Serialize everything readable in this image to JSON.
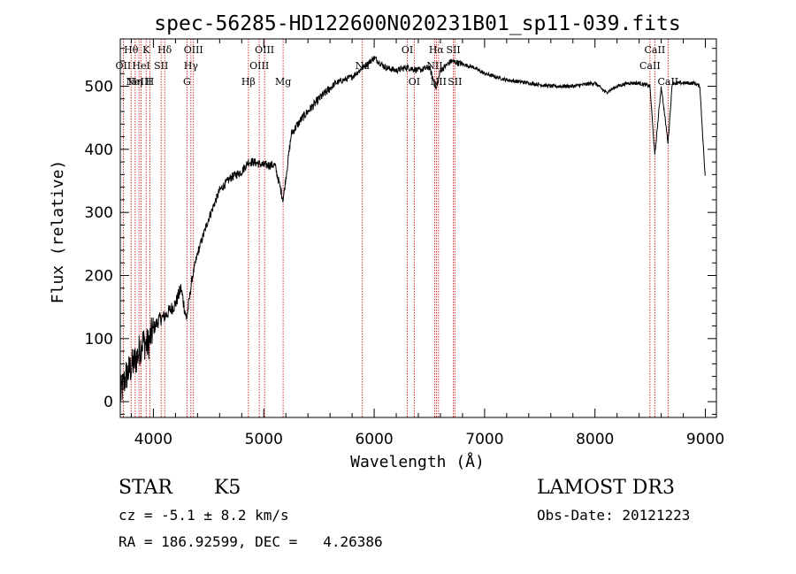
{
  "chart_data": {
    "type": "line",
    "title": "spec-56285-HD122600N020231B01_sp11-039.fits",
    "xlabel": "Wavelength (Å)",
    "ylabel": "Flux (relative)",
    "xlim": [
      3700,
      9100
    ],
    "ylim": [
      -25,
      575
    ],
    "x_ticks": [
      4000,
      5000,
      6000,
      7000,
      8000,
      9000
    ],
    "y_ticks": [
      0,
      100,
      200,
      300,
      400,
      500
    ],
    "grid": false,
    "line_color": "#000000",
    "marker_color": "#cc0000",
    "series": [
      {
        "x": [
          3700,
          3750,
          3800,
          3850,
          3900,
          3950,
          4000,
          4050,
          4100,
          4150,
          4200,
          4250,
          4300,
          4350,
          4400,
          4500,
          4600,
          4700,
          4800,
          4861,
          4900,
          5000,
          5100,
          5175,
          5250,
          5350,
          5500,
          5650,
          5800,
          5900,
          6000,
          6100,
          6200,
          6300,
          6400,
          6500,
          6563,
          6600,
          6700,
          6800,
          6900,
          7000,
          7100,
          7200,
          7400,
          7600,
          7800,
          8000,
          8100,
          8200,
          8300,
          8400,
          8498,
          8542,
          8600,
          8662,
          8700,
          8800,
          8900,
          8950,
          9000
        ],
        "y": [
          10,
          40,
          55,
          70,
          95,
          90,
          115,
          130,
          135,
          145,
          155,
          180,
          130,
          195,
          235,
          290,
          335,
          355,
          365,
          380,
          380,
          375,
          375,
          320,
          425,
          450,
          480,
          505,
          515,
          530,
          545,
          530,
          525,
          530,
          525,
          530,
          495,
          525,
          540,
          535,
          530,
          520,
          515,
          510,
          505,
          500,
          500,
          505,
          490,
          500,
          505,
          505,
          500,
          390,
          500,
          410,
          505,
          505,
          505,
          500,
          350
        ]
      }
    ],
    "line_markers": [
      {
        "x": 3727,
        "label": "OII",
        "row": 1
      },
      {
        "x": 3798,
        "label": "Hθ",
        "row": 0
      },
      {
        "x": 3835,
        "label": "Hη",
        "row": 2
      },
      {
        "x": 3869,
        "label": "NeIII",
        "row": 2
      },
      {
        "x": 3889,
        "label": "HeI",
        "row": 1
      },
      {
        "x": 3934,
        "label": "K",
        "row": 0
      },
      {
        "x": 3968,
        "label": "H",
        "row": 2
      },
      {
        "x": 4070,
        "label": "SII",
        "row": 1
      },
      {
        "x": 4102,
        "label": "Hδ",
        "row": 0
      },
      {
        "x": 4304,
        "label": "G",
        "row": 2
      },
      {
        "x": 4340,
        "label": "Hγ",
        "row": 1
      },
      {
        "x": 4363,
        "label": "OIII",
        "row": 0
      },
      {
        "x": 4861,
        "label": "Hβ",
        "row": 2
      },
      {
        "x": 4959,
        "label": "OIII",
        "row": 1
      },
      {
        "x": 5007,
        "label": "OIII",
        "row": 0
      },
      {
        "x": 5175,
        "label": "Mg",
        "row": 2
      },
      {
        "x": 5893,
        "label": "Na",
        "row": 1
      },
      {
        "x": 6300,
        "label": "OI",
        "row": 0
      },
      {
        "x": 6363,
        "label": "OI",
        "row": 2
      },
      {
        "x": 6548,
        "label": "NII",
        "row": 1
      },
      {
        "x": 6563,
        "label": "Hα",
        "row": 0
      },
      {
        "x": 6583,
        "label": "NII",
        "row": 2
      },
      {
        "x": 6717,
        "label": "SII",
        "row": 0
      },
      {
        "x": 6731,
        "label": "SII",
        "row": 2
      },
      {
        "x": 8498,
        "label": "CaII",
        "row": 1
      },
      {
        "x": 8542,
        "label": "CaII",
        "row": 0
      },
      {
        "x": 8662,
        "label": "CaII",
        "row": 2
      }
    ]
  },
  "info": {
    "object_class": "STAR",
    "subclass": "K5",
    "survey": "LAMOST DR3",
    "redshift": "cz = -5.1 ± 8.2 km/s",
    "obs_date": "Obs-Date: 20121223",
    "coords": "RA = 186.92599, DEC =   4.26386"
  }
}
